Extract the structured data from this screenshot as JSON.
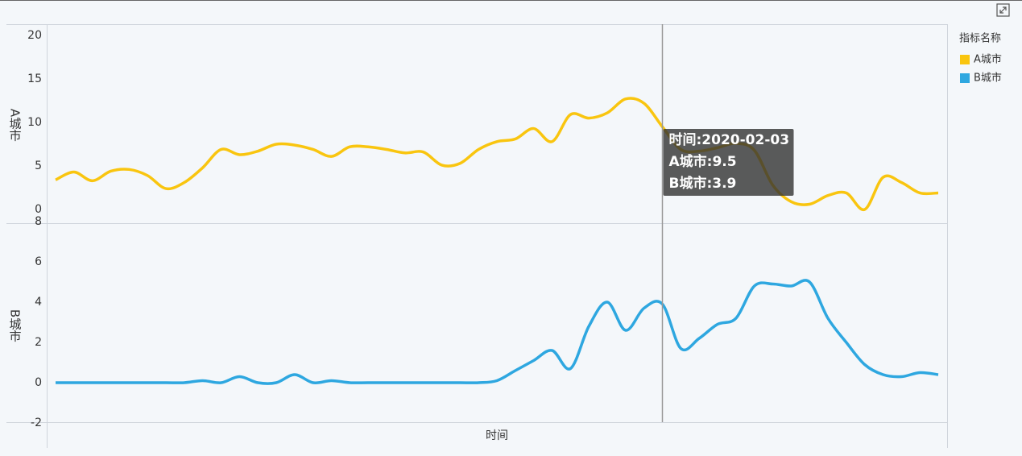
{
  "chart_data": {
    "type": "line",
    "x_label": "时间",
    "legend_title": "指标名称",
    "categories": [
      null,
      null,
      null,
      null,
      null,
      null,
      null,
      null,
      null,
      null,
      null,
      null,
      null,
      null,
      null,
      null,
      null,
      null,
      null,
      null,
      null,
      null,
      null,
      null,
      null,
      null,
      null,
      null,
      null,
      null,
      null,
      null,
      null,
      null,
      null,
      null,
      null,
      null,
      null,
      null,
      null,
      null,
      null,
      null,
      null,
      null,
      null,
      null,
      null
    ],
    "series": [
      {
        "name": "A城市",
        "color": "#f9c50f",
        "ylim": [
          0,
          20
        ],
        "yticks": [
          0,
          5,
          10,
          15,
          20
        ],
        "values": [
          3.4,
          4.3,
          3.3,
          4.4,
          4.6,
          3.9,
          2.4,
          3.1,
          4.8,
          6.9,
          6.3,
          6.7,
          7.5,
          7.4,
          6.9,
          6.1,
          7.2,
          7.2,
          6.9,
          6.5,
          6.6,
          5.1,
          5.3,
          6.9,
          7.8,
          8.1,
          9.3,
          7.8,
          10.9,
          10.5,
          11.1,
          12.7,
          12.2,
          9.5,
          6.9,
          6.7,
          7.1,
          7.6,
          6.8,
          2.8,
          0.9,
          0.6,
          1.6,
          1.9,
          0,
          3.7,
          3.1,
          1.9,
          1.9
        ]
      },
      {
        "name": "B城市",
        "color": "#2ea7e0",
        "ylim": [
          -2,
          8
        ],
        "yticks": [
          -2,
          0,
          2,
          4,
          6,
          8
        ],
        "values": [
          0,
          0,
          0,
          0,
          0,
          0,
          0,
          0,
          0.1,
          0,
          0.3,
          0,
          0,
          0.4,
          0,
          0.1,
          0,
          0,
          0,
          0,
          0,
          0,
          0,
          0,
          0.1,
          0.6,
          1.1,
          1.6,
          0.7,
          2.8,
          4.0,
          2.6,
          3.7,
          3.9,
          1.7,
          2.2,
          2.9,
          3.2,
          4.8,
          4.9,
          4.8,
          5.0,
          3.2,
          2.0,
          0.9,
          0.4,
          0.3,
          0.5,
          0.4
        ]
      }
    ],
    "tooltip": {
      "index": 33,
      "lines": [
        "时间:2020-02-03",
        "A城市:9.5",
        "B城市:3.9"
      ]
    }
  }
}
